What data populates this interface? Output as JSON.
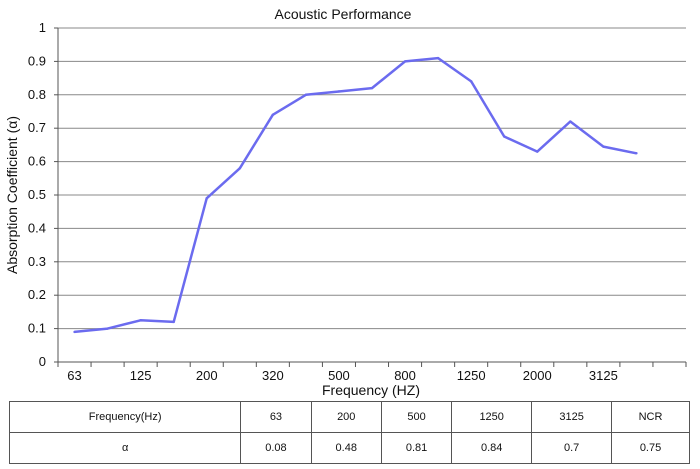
{
  "chart_data": {
    "type": "line",
    "title": "Acoustic Performance",
    "xlabel": "Frequency (HZ)",
    "ylabel": "Absorption Coefficient (α)",
    "ylim": [
      0,
      1
    ],
    "yticks": [
      "0",
      "0.1",
      "0.2",
      "0.3",
      "0.4",
      "0.5",
      "0.6",
      "0.7",
      "0.8",
      "0.9",
      "1"
    ],
    "x_tick_labels": [
      "63",
      "125",
      "200",
      "320",
      "500",
      "800",
      "1250",
      "2000",
      "3125"
    ],
    "grid": "horizontal",
    "series_color": "#6b6bef",
    "series": [
      {
        "values": [
          0.09,
          0.1,
          0.125,
          0.12,
          0.49,
          0.58,
          0.74,
          0.8,
          0.81,
          0.82,
          0.9,
          0.91,
          0.84,
          0.675,
          0.63,
          0.72,
          0.645,
          0.625
        ]
      }
    ]
  },
  "table": {
    "header": [
      "Frequency(Hz)",
      "63",
      "200",
      "500",
      "1250",
      "3125",
      "NCR"
    ],
    "row": [
      "α",
      "0.08",
      "0.48",
      "0.81",
      "0.84",
      "0.7",
      "0.75"
    ]
  }
}
